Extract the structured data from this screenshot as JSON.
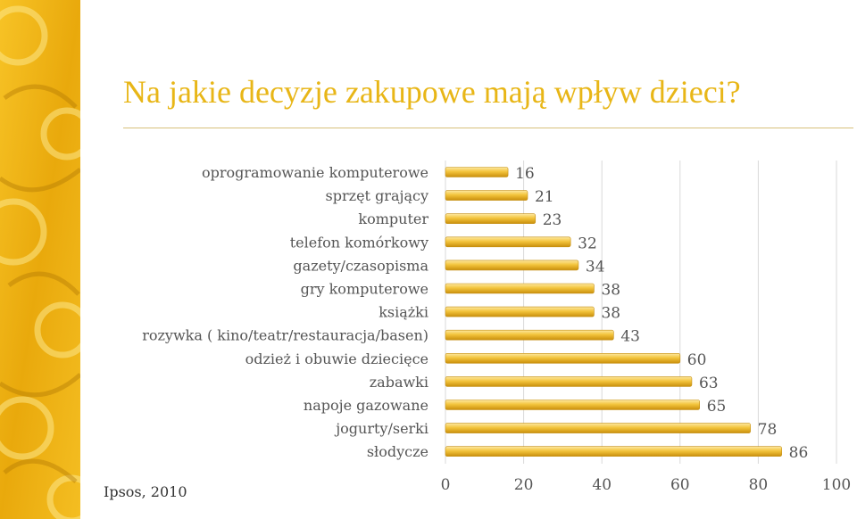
{
  "title": "Na jakie decyzje zakupowe mają wpływ dzieci?",
  "source": "Ipsos, 2010",
  "colors": {
    "accent": "#e8b617",
    "bar_light": "#fbe08a",
    "bar_dark": "#d79e10",
    "text": "#555555",
    "grid": "#d9d9d9"
  },
  "chart_data": {
    "type": "bar",
    "orientation": "horizontal",
    "categories": [
      "oprogramowanie komputerowe",
      "sprzęt grający",
      "komputer",
      "telefon komórkowy",
      "gazety/czasopisma",
      "gry komputerowe",
      "książki",
      "rozywka ( kino/teatr/restauracja/basen)",
      "odzież i obuwie dziecięce",
      "zabawki",
      "napoje gazowane",
      "jogurty/serki",
      "słodycze"
    ],
    "values": [
      16,
      21,
      23,
      32,
      34,
      38,
      38,
      43,
      60,
      63,
      65,
      78,
      86
    ],
    "xlim": [
      0,
      100
    ],
    "xticks": [
      0,
      20,
      40,
      60,
      80,
      100
    ],
    "grid": true,
    "data_labels": true,
    "legend": false
  }
}
